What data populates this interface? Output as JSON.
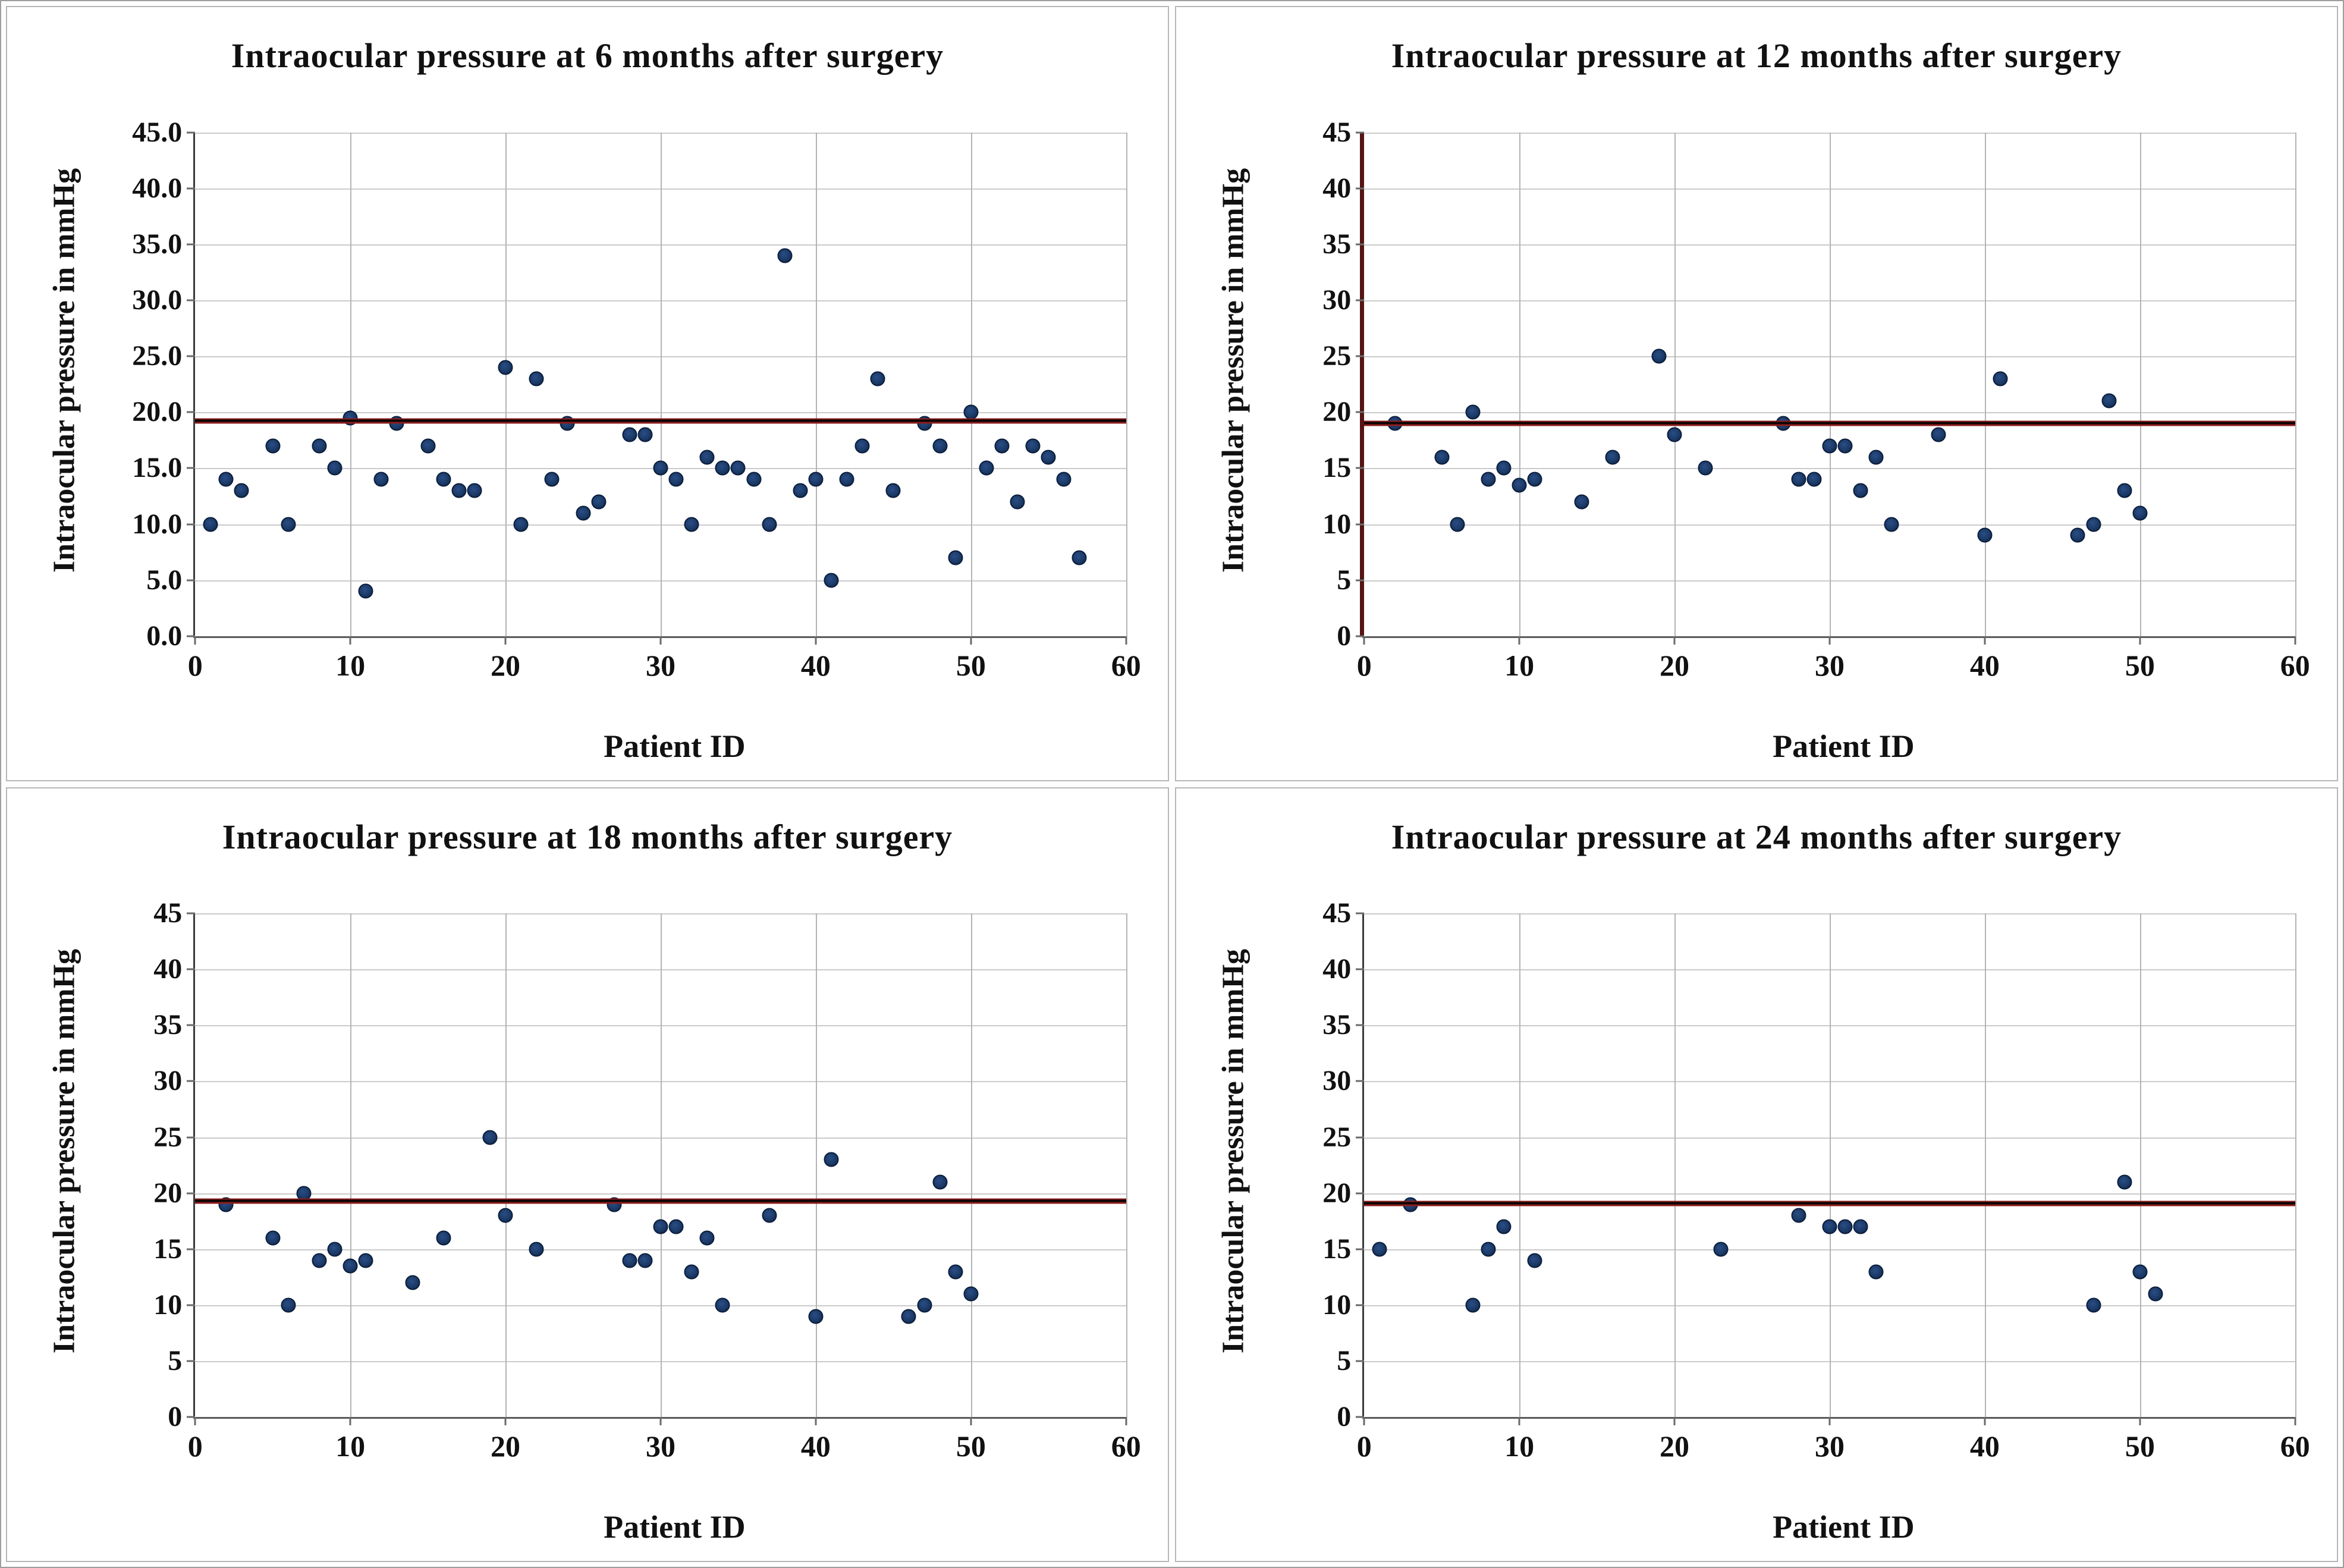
{
  "figure": {
    "description": "Scatter plots of intraocular pressure after surgery",
    "x_label": "Patient ID",
    "y_label": "Intraocular pressure in mmHg"
  },
  "colors": {
    "marker_fill": "#1b3a67",
    "marker_border": "#0b1e3c",
    "ref_line_red": "#8e1d1d",
    "ref_line_black": "#0c0505",
    "gridline_horizontal": "#cbcbcb",
    "gridline_vertical": "#b4b4b4",
    "axis_default": "#3a3a3a",
    "axis_maroon": "#561414",
    "panel_border": "#b7b7b7",
    "text": "#111111"
  },
  "chart_data": [
    {
      "type": "scatter",
      "title": "Intraocular pressure at 6 months after surgery",
      "xlabel": "Patient ID",
      "ylabel": "Intraocular pressure in mmHg",
      "xlim": [
        0,
        60
      ],
      "ylim": [
        0,
        45
      ],
      "x_tick_labels": [
        "0",
        "10",
        "20",
        "30",
        "40",
        "50",
        "60"
      ],
      "y_tick_labels": [
        "45.0",
        "40.0",
        "35.0",
        "30.0",
        "25.0",
        "20.0",
        "15.0",
        "10.0",
        "5.0",
        "0.0"
      ],
      "grid": true,
      "legend": "none",
      "ref_line": 19.2,
      "y_axis_color": "#3a3a3a",
      "y_axis_width": 3,
      "points": [
        [
          1,
          10
        ],
        [
          2,
          14
        ],
        [
          3,
          13
        ],
        [
          5,
          17
        ],
        [
          6,
          10
        ],
        [
          8,
          17
        ],
        [
          9,
          15
        ],
        [
          10,
          19.5
        ],
        [
          11,
          4
        ],
        [
          12,
          14
        ],
        [
          13,
          19
        ],
        [
          15,
          17
        ],
        [
          16,
          14
        ],
        [
          17,
          13
        ],
        [
          18,
          13
        ],
        [
          20,
          24
        ],
        [
          21,
          10
        ],
        [
          22,
          23
        ],
        [
          23,
          14
        ],
        [
          24,
          19
        ],
        [
          25,
          11
        ],
        [
          26,
          12
        ],
        [
          28,
          18
        ],
        [
          29,
          18
        ],
        [
          30,
          15
        ],
        [
          31,
          14
        ],
        [
          32,
          10
        ],
        [
          33,
          16
        ],
        [
          34,
          15
        ],
        [
          35,
          15
        ],
        [
          36,
          14
        ],
        [
          37,
          10
        ],
        [
          38,
          34
        ],
        [
          39,
          13
        ],
        [
          40,
          14
        ],
        [
          41,
          5
        ],
        [
          42,
          14
        ],
        [
          43,
          17
        ],
        [
          44,
          23
        ],
        [
          45,
          13
        ],
        [
          47,
          19
        ],
        [
          48,
          17
        ],
        [
          49,
          7
        ],
        [
          50,
          20
        ],
        [
          51,
          15
        ],
        [
          52,
          17
        ],
        [
          53,
          12
        ],
        [
          54,
          17
        ],
        [
          55,
          16
        ],
        [
          56,
          14
        ],
        [
          57,
          7
        ]
      ]
    },
    {
      "type": "scatter",
      "title": "Intraocular pressure at 12 months after surgery",
      "xlabel": "Patient ID",
      "ylabel": "Intraocular pressure in mmHg",
      "xlim": [
        0,
        60
      ],
      "ylim": [
        0,
        45
      ],
      "x_tick_labels": [
        "0",
        "10",
        "20",
        "30",
        "40",
        "50",
        "60"
      ],
      "y_tick_labels": [
        "45",
        "40",
        "35",
        "30",
        "25",
        "20",
        "15",
        "10",
        "5",
        "0"
      ],
      "grid": true,
      "legend": "none",
      "ref_line": 19.0,
      "y_axis_color": "#561414",
      "y_axis_width": 7,
      "points": [
        [
          2,
          19
        ],
        [
          5,
          16
        ],
        [
          6,
          10
        ],
        [
          7,
          20
        ],
        [
          8,
          14
        ],
        [
          9,
          15
        ],
        [
          10,
          13.5
        ],
        [
          11,
          14
        ],
        [
          14,
          12
        ],
        [
          16,
          16
        ],
        [
          19,
          25
        ],
        [
          20,
          18
        ],
        [
          22,
          15
        ],
        [
          27,
          19
        ],
        [
          28,
          14
        ],
        [
          29,
          14
        ],
        [
          30,
          17
        ],
        [
          31,
          17
        ],
        [
          32,
          13
        ],
        [
          33,
          16
        ],
        [
          34,
          10
        ],
        [
          37,
          18
        ],
        [
          40,
          9
        ],
        [
          41,
          23
        ],
        [
          46,
          9
        ],
        [
          47,
          10
        ],
        [
          48,
          21
        ],
        [
          49,
          13
        ],
        [
          50,
          11
        ]
      ]
    },
    {
      "type": "scatter",
      "title": "Intraocular pressure at 18 months after surgery",
      "xlabel": "Patient ID",
      "ylabel": "Intraocular pressure in mmHg",
      "xlim": [
        0,
        60
      ],
      "ylim": [
        0,
        45
      ],
      "x_tick_labels": [
        "0",
        "10",
        "20",
        "30",
        "40",
        "50",
        "60"
      ],
      "y_tick_labels": [
        "45",
        "40",
        "35",
        "30",
        "25",
        "20",
        "15",
        "10",
        "5",
        "0"
      ],
      "grid": true,
      "legend": "none",
      "ref_line": 19.3,
      "y_axis_color": "#3a3a3a",
      "y_axis_width": 3,
      "points": [
        [
          2,
          19
        ],
        [
          5,
          16
        ],
        [
          6,
          10
        ],
        [
          7,
          20
        ],
        [
          8,
          14
        ],
        [
          9,
          15
        ],
        [
          10,
          13.5
        ],
        [
          11,
          14
        ],
        [
          14,
          12
        ],
        [
          16,
          16
        ],
        [
          19,
          25
        ],
        [
          20,
          18
        ],
        [
          22,
          15
        ],
        [
          27,
          19
        ],
        [
          28,
          14
        ],
        [
          29,
          14
        ],
        [
          30,
          17
        ],
        [
          31,
          17
        ],
        [
          32,
          13
        ],
        [
          33,
          16
        ],
        [
          34,
          10
        ],
        [
          37,
          18
        ],
        [
          40,
          9
        ],
        [
          41,
          23
        ],
        [
          46,
          9
        ],
        [
          47,
          10
        ],
        [
          48,
          21
        ],
        [
          49,
          13
        ],
        [
          50,
          11
        ]
      ]
    },
    {
      "type": "scatter",
      "title": "Intraocular pressure at 24 months after surgery",
      "xlabel": "Patient ID",
      "ylabel": "Intraocular pressure in mmHg",
      "xlim": [
        0,
        60
      ],
      "ylim": [
        0,
        45
      ],
      "x_tick_labels": [
        "0",
        "10",
        "20",
        "30",
        "40",
        "50",
        "60"
      ],
      "y_tick_labels": [
        "45",
        "40",
        "35",
        "30",
        "25",
        "20",
        "15",
        "10",
        "5",
        "0"
      ],
      "grid": true,
      "legend": "none",
      "ref_line": 19.1,
      "y_axis_color": "#3a3a3a",
      "y_axis_width": 3,
      "points": [
        [
          1,
          15
        ],
        [
          3,
          19
        ],
        [
          7,
          10
        ],
        [
          8,
          15
        ],
        [
          9,
          17
        ],
        [
          11,
          14
        ],
        [
          23,
          15
        ],
        [
          28,
          18
        ],
        [
          30,
          17
        ],
        [
          31,
          17
        ],
        [
          32,
          17
        ],
        [
          33,
          13
        ],
        [
          47,
          10
        ],
        [
          49,
          21
        ],
        [
          50,
          13
        ],
        [
          51,
          11
        ]
      ]
    }
  ]
}
